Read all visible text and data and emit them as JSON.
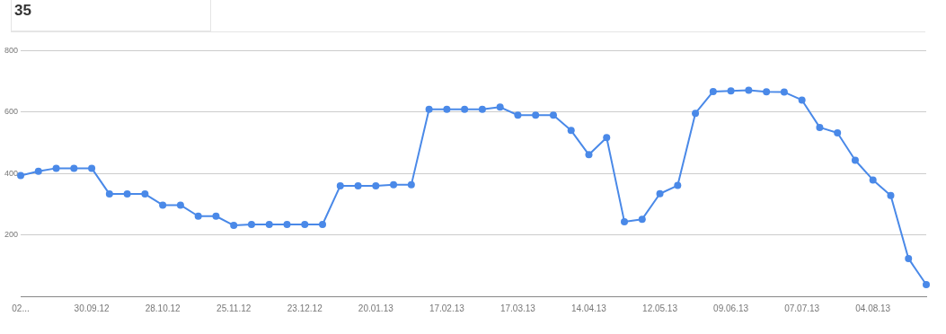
{
  "chart_data": {
    "type": "line",
    "categories": [
      "02...",
      null,
      null,
      null,
      "30.09.12",
      null,
      null,
      null,
      "28.10.12",
      null,
      null,
      null,
      "25.11.12",
      null,
      null,
      null,
      "23.12.12",
      null,
      null,
      null,
      "20.01.13",
      null,
      null,
      null,
      "17.02.13",
      null,
      null,
      null,
      "17.03.13",
      null,
      null,
      null,
      "14.04.13",
      null,
      null,
      null,
      "12.05.13",
      null,
      null,
      null,
      "09.06.13",
      null,
      null,
      null,
      "07.07.13",
      null,
      null,
      null,
      "04.08.13",
      null,
      null,
      null
    ],
    "series": [
      {
        "color": "#4a89e8",
        "values": [
          393,
          407,
          417,
          417,
          417,
          333,
          333,
          333,
          297,
          297,
          261,
          261,
          231,
          234,
          234,
          234,
          234,
          234,
          360,
          360,
          360,
          363,
          363,
          609,
          609,
          609,
          609,
          616,
          590,
          590,
          590,
          540,
          461,
          517,
          243,
          251,
          334,
          361,
          596,
          667,
          669,
          671,
          666,
          665,
          639,
          550,
          532,
          443,
          379,
          328,
          123,
          38
        ]
      }
    ],
    "ylim": [
      0,
      800
    ],
    "yticks": [
      200,
      400,
      600,
      800
    ],
    "grid": "y",
    "legend": false,
    "marker": "circle",
    "line_style": "solid",
    "annotations": [
      "35"
    ]
  }
}
